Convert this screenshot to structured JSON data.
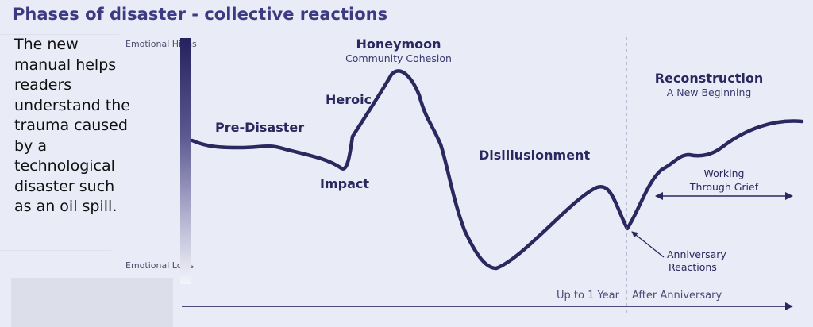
{
  "title": "Phases of disaster - collective reactions",
  "caption": "The new manual helps readers understand the trauma caused by a technological disaster such as an oil spill.",
  "y_axis": {
    "high_label": "Emotional Highs",
    "low_label": "Emotional Lows"
  },
  "phases": {
    "pre_disaster": "Pre-Disaster",
    "impact": "Impact",
    "heroic": "Heroic",
    "honeymoon": "Honeymoon",
    "honeymoon_sub": "Community Cohesion",
    "disillusionment": "Disillusionment",
    "reconstruction": "Reconstruction",
    "reconstruction_sub": "A New Beginning"
  },
  "annotations": {
    "working_through_grief_1": "Working",
    "working_through_grief_2": "Through Grief",
    "anniversary_1": "Anniversary",
    "anniversary_2": "Reactions"
  },
  "timeline": {
    "up_to_one_year": "Up to 1 Year",
    "after_anniversary": "After Anniversary"
  },
  "colors": {
    "curve": "#2b275f",
    "title": "#3e3a82",
    "background": "#e9ecf6",
    "timeline_arrow": "#4e4b7a"
  }
}
